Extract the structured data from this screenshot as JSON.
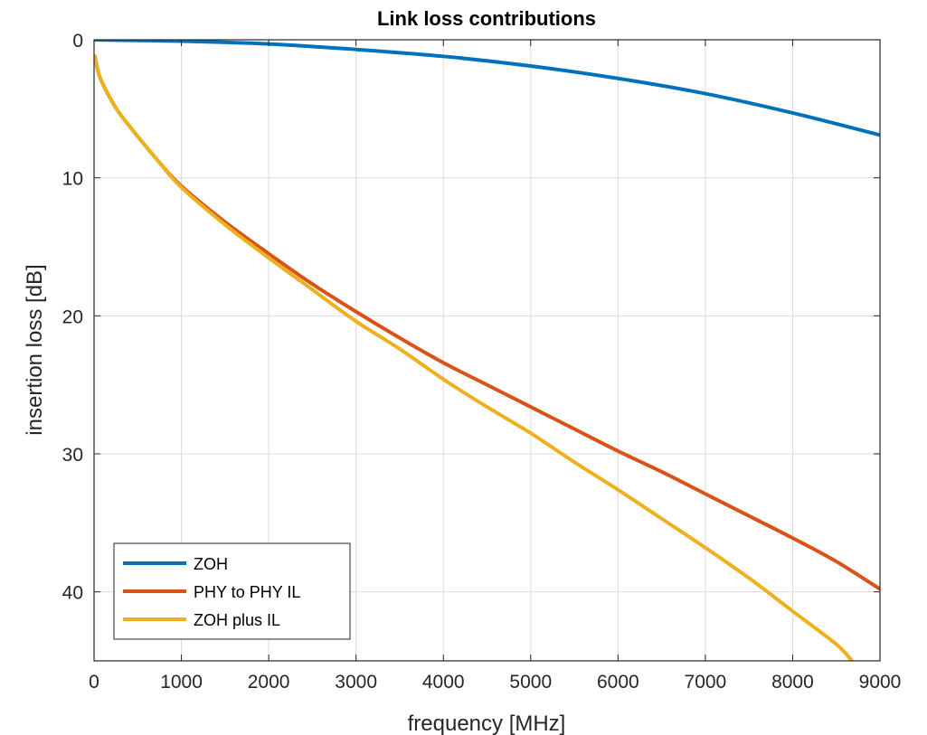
{
  "chart_data": {
    "type": "line",
    "title": "Link loss contributions",
    "xlabel": "frequency [MHz]",
    "ylabel": "insertion loss [dB]",
    "xlim": [
      0,
      9000
    ],
    "ylim": [
      0,
      45
    ],
    "y_reversed": true,
    "grid": true,
    "legend_position": "bottom-left",
    "x_ticks": [
      0,
      1000,
      2000,
      3000,
      4000,
      5000,
      6000,
      7000,
      8000,
      9000
    ],
    "y_ticks": [
      0,
      10,
      20,
      30,
      40
    ],
    "series": [
      {
        "name": "ZOH",
        "color": "#0072BD",
        "x": [
          0,
          1000,
          2000,
          3000,
          4000,
          5000,
          6000,
          7000,
          8000,
          9000
        ],
        "y": [
          0,
          0.1,
          0.3,
          0.7,
          1.2,
          1.9,
          2.8,
          3.9,
          5.3,
          6.9
        ]
      },
      {
        "name": "PHY to PHY IL",
        "color": "#D95319",
        "x": [
          10,
          50,
          100,
          200,
          300,
          500,
          750,
          1000,
          1500,
          2000,
          2500,
          3000,
          3500,
          4000,
          4500,
          5000,
          5500,
          6000,
          6500,
          7000,
          7500,
          8000,
          8500,
          9000
        ],
        "y": [
          1.2,
          2.4,
          3.2,
          4.4,
          5.4,
          7.0,
          8.9,
          10.6,
          13.2,
          15.5,
          17.7,
          19.7,
          21.6,
          23.4,
          25.0,
          26.6,
          28.2,
          29.8,
          31.3,
          32.9,
          34.5,
          36.1,
          37.8,
          39.8
        ]
      },
      {
        "name": "ZOH plus IL",
        "color": "#EDB120",
        "x": [
          10,
          50,
          100,
          200,
          300,
          500,
          750,
          1000,
          1500,
          2000,
          2500,
          3000,
          3500,
          4000,
          4500,
          5000,
          5500,
          6000,
          6500,
          7000,
          7500,
          8000,
          8500,
          8680
        ],
        "y": [
          1.2,
          2.4,
          3.2,
          4.4,
          5.4,
          7.0,
          8.9,
          10.7,
          13.4,
          15.8,
          18.1,
          20.4,
          22.4,
          24.6,
          26.6,
          28.5,
          30.6,
          32.6,
          34.7,
          36.8,
          39.0,
          41.4,
          43.8,
          45.0
        ]
      }
    ]
  }
}
